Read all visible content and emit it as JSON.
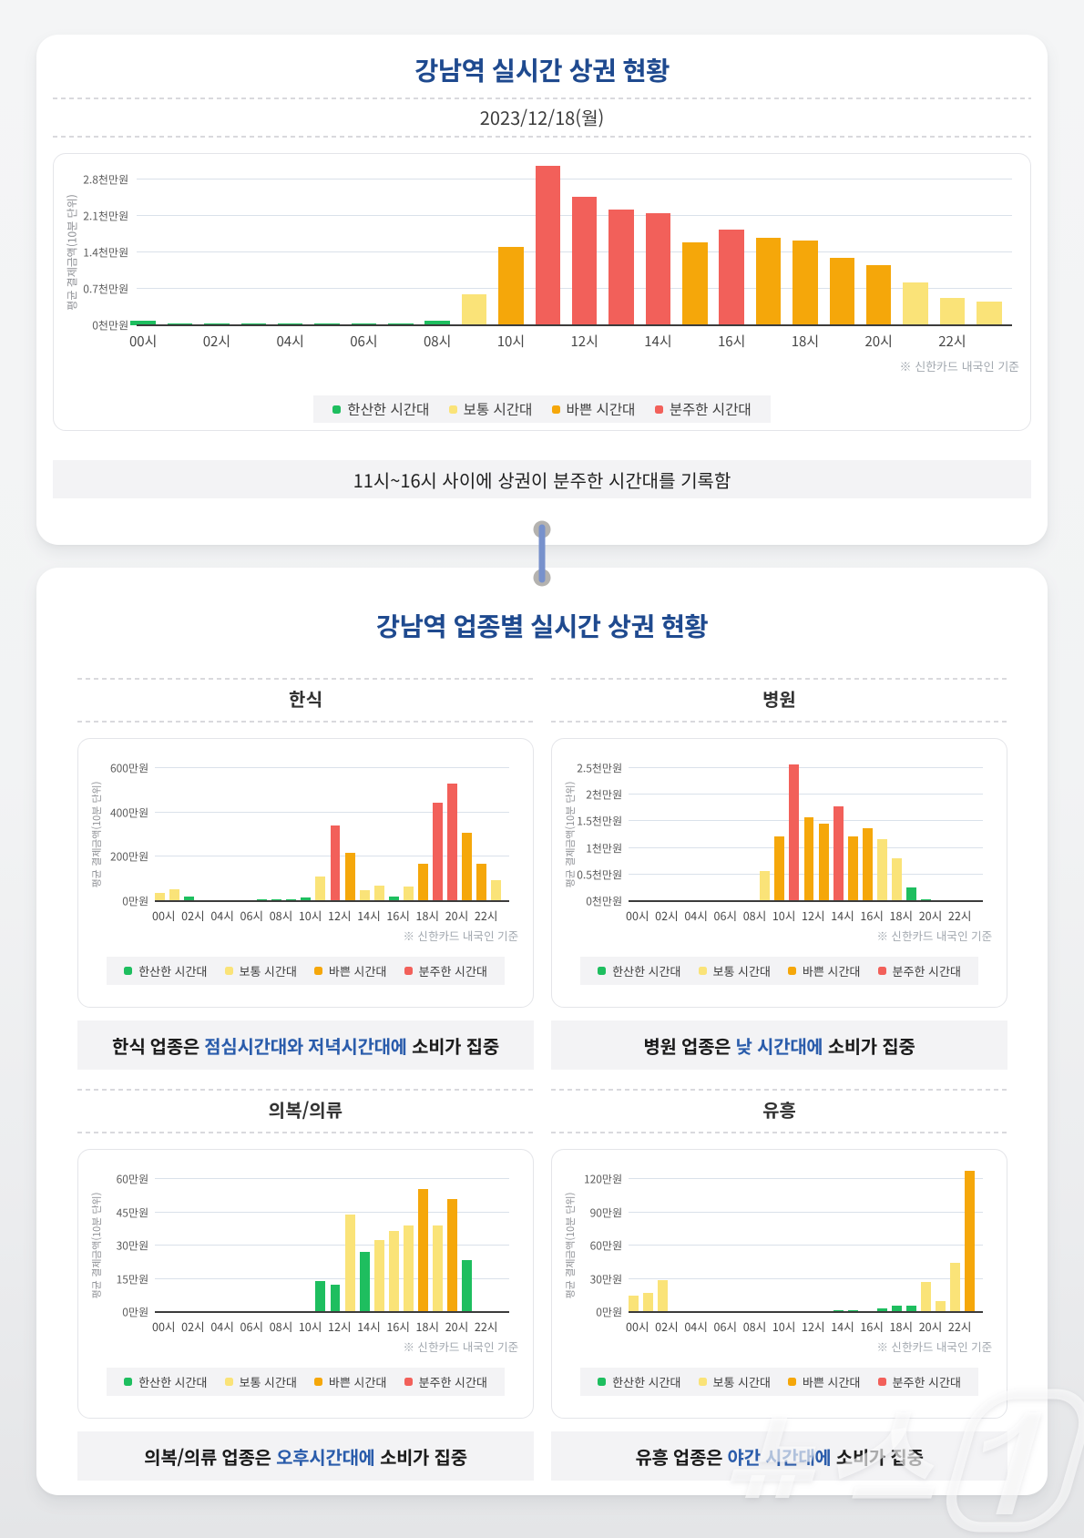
{
  "palette": {
    "quiet": "#1ebe5f",
    "normal": "#fae378",
    "busy": "#f5a70a",
    "hectic": "#f2605a",
    "title_blue": "#1f4a8f",
    "accent_blue": "#2a5cab"
  },
  "legend": {
    "items": [
      {
        "key": "quiet",
        "label": "한산한 시간대"
      },
      {
        "key": "normal",
        "label": "보통 시간대"
      },
      {
        "key": "busy",
        "label": "바쁜 시간대"
      },
      {
        "key": "hectic",
        "label": "분주한 시간대"
      }
    ]
  },
  "note": "※ 신한카드 내국인 기준",
  "axis_unit": "평균 결제금액(10분 단위)",
  "card1": {
    "title": "강남역 실시간 상권 현황",
    "date": "2023/12/18(월)",
    "summary": [
      {
        "t": "11시~16시 사이에 상권이 분주한 시간대를 기록함",
        "a": false
      }
    ]
  },
  "card2": {
    "title": "강남역 업종별 실시간 상권 현황",
    "sections": [
      {
        "title": "한식",
        "chart": 1,
        "summary": [
          {
            "t": "한식 업종은 ",
            "a": false
          },
          {
            "t": "점심시간대와 저녁시간대에",
            "a": true
          },
          {
            "t": " 소비가 집중",
            "a": false
          }
        ]
      },
      {
        "title": "병원",
        "chart": 2,
        "summary": [
          {
            "t": "병원 업종은 ",
            "a": false
          },
          {
            "t": "낮 시간대에",
            "a": true
          },
          {
            "t": " 소비가 집중",
            "a": false
          }
        ]
      },
      {
        "title": "의복/의류",
        "chart": 3,
        "summary": [
          {
            "t": "의복/의류 업종은 ",
            "a": false
          },
          {
            "t": "오후시간대에",
            "a": true
          },
          {
            "t": " 소비가 집중",
            "a": false
          }
        ]
      },
      {
        "title": "유흥",
        "chart": 4,
        "summary": [
          {
            "t": "유흥 업종은 ",
            "a": false
          },
          {
            "t": "야간 시간대에",
            "a": true
          },
          {
            "t": " 소비가 집중",
            "a": false
          }
        ]
      }
    ]
  },
  "watermark": "뉴스1",
  "chart_data": [
    {
      "id": "gangnam-all",
      "type": "bar",
      "title": "강남역 실시간 상권 현황",
      "ylabel": "평균 결제금액(10분 단위)",
      "categories": [
        "00시",
        "01시",
        "02시",
        "03시",
        "04시",
        "05시",
        "06시",
        "07시",
        "08시",
        "09시",
        "10시",
        "11시",
        "12시",
        "13시",
        "14시",
        "15시",
        "16시",
        "17시",
        "18시",
        "19시",
        "20시",
        "21시",
        "22시",
        "23시"
      ],
      "x_ticks_shown": [
        "00시",
        "02시",
        "04시",
        "06시",
        "08시",
        "10시",
        "12시",
        "14시",
        "16시",
        "18시",
        "20시",
        "22시"
      ],
      "yticks": [
        {
          "v": 0,
          "label": "0천만원"
        },
        {
          "v": 0.7,
          "label": "0.7천만원"
        },
        {
          "v": 1.4,
          "label": "1.4천만원"
        },
        {
          "v": 2.1,
          "label": "2.1천만원"
        },
        {
          "v": 2.8,
          "label": "2.8천만원"
        }
      ],
      "ymax": 2.8,
      "unit": "천만원",
      "values": [
        0.09,
        0.04,
        0.04,
        0.03,
        0.04,
        0.04,
        0.04,
        0.04,
        0.09,
        0.6,
        1.5,
        3.06,
        2.47,
        2.22,
        2.15,
        1.6,
        1.84,
        1.68,
        1.62,
        1.29,
        1.16,
        0.83,
        0.52,
        0.45
      ],
      "levels": [
        "quiet",
        "quiet",
        "quiet",
        "quiet",
        "quiet",
        "quiet",
        "quiet",
        "quiet",
        "quiet",
        "normal",
        "busy",
        "hectic",
        "hectic",
        "hectic",
        "hectic",
        "busy",
        "hectic",
        "busy",
        "busy",
        "busy",
        "busy",
        "normal",
        "normal",
        "normal"
      ],
      "legend_position": "bottom",
      "grid": true
    },
    {
      "id": "korean-food",
      "type": "bar",
      "title": "한식",
      "ylabel": "평균 결제금액(10분 단위)",
      "categories": [
        "00시",
        "01시",
        "02시",
        "03시",
        "04시",
        "05시",
        "06시",
        "07시",
        "08시",
        "09시",
        "10시",
        "11시",
        "12시",
        "13시",
        "14시",
        "15시",
        "16시",
        "17시",
        "18시",
        "19시",
        "20시",
        "21시",
        "22시",
        "23시"
      ],
      "x_ticks_shown": [
        "00시",
        "02시",
        "04시",
        "06시",
        "08시",
        "10시",
        "12시",
        "14시",
        "16시",
        "18시",
        "20시",
        "22시"
      ],
      "yticks": [
        {
          "v": 0,
          "label": "0만원"
        },
        {
          "v": 200,
          "label": "200만원"
        },
        {
          "v": 400,
          "label": "400만원"
        },
        {
          "v": 600,
          "label": "600만원"
        }
      ],
      "ymax": 600,
      "unit": "만원",
      "values": [
        35,
        52,
        22,
        0,
        0,
        0,
        0,
        8,
        8,
        8,
        15,
        110,
        340,
        218,
        50,
        68,
        22,
        67,
        170,
        445,
        530,
        310,
        170,
        95
      ],
      "levels": [
        "normal",
        "normal",
        "quiet",
        null,
        null,
        null,
        null,
        "quiet",
        "quiet",
        "quiet",
        "quiet",
        "normal",
        "hectic",
        "busy",
        "normal",
        "normal",
        "quiet",
        "normal",
        "busy",
        "hectic",
        "hectic",
        "busy",
        "busy",
        "normal"
      ],
      "legend_position": "bottom",
      "grid": true
    },
    {
      "id": "hospital",
      "type": "bar",
      "title": "병원",
      "ylabel": "평균 결제금액(10분 단위)",
      "categories": [
        "00시",
        "01시",
        "02시",
        "03시",
        "04시",
        "05시",
        "06시",
        "07시",
        "08시",
        "09시",
        "10시",
        "11시",
        "12시",
        "13시",
        "14시",
        "15시",
        "16시",
        "17시",
        "18시",
        "19시",
        "20시",
        "21시",
        "22시",
        "23시"
      ],
      "x_ticks_shown": [
        "00시",
        "02시",
        "04시",
        "06시",
        "08시",
        "10시",
        "12시",
        "14시",
        "16시",
        "18시",
        "20시",
        "22시"
      ],
      "yticks": [
        {
          "v": 0,
          "label": "0천만원"
        },
        {
          "v": 0.5,
          "label": "0.5천만원"
        },
        {
          "v": 1,
          "label": "1천만원"
        },
        {
          "v": 1.5,
          "label": "1.5천만원"
        },
        {
          "v": 2,
          "label": "2천만원"
        },
        {
          "v": 2.5,
          "label": "2.5천만원"
        }
      ],
      "ymax": 2.5,
      "unit": "천만원",
      "values": [
        0,
        0,
        0,
        0,
        0,
        0,
        0,
        0,
        0,
        0.56,
        1.22,
        2.57,
        1.57,
        1.45,
        1.78,
        1.22,
        1.37,
        1.17,
        0.81,
        0.25,
        0.03,
        0,
        0,
        0
      ],
      "levels": [
        null,
        null,
        null,
        null,
        null,
        null,
        null,
        null,
        null,
        "normal",
        "busy",
        "hectic",
        "busy",
        "busy",
        "hectic",
        "busy",
        "busy",
        "normal",
        "normal",
        "quiet",
        "quiet",
        null,
        null,
        null
      ],
      "legend_position": "bottom",
      "grid": true
    },
    {
      "id": "clothing",
      "type": "bar",
      "title": "의복/의류",
      "ylabel": "평균 결제금액(10분 단위)",
      "categories": [
        "00시",
        "01시",
        "02시",
        "03시",
        "04시",
        "05시",
        "06시",
        "07시",
        "08시",
        "09시",
        "10시",
        "11시",
        "12시",
        "13시",
        "14시",
        "15시",
        "16시",
        "17시",
        "18시",
        "19시",
        "20시",
        "21시",
        "22시",
        "23시"
      ],
      "x_ticks_shown": [
        "00시",
        "02시",
        "04시",
        "06시",
        "08시",
        "10시",
        "12시",
        "14시",
        "16시",
        "18시",
        "20시",
        "22시"
      ],
      "yticks": [
        {
          "v": 0,
          "label": "0만원"
        },
        {
          "v": 15,
          "label": "15만원"
        },
        {
          "v": 30,
          "label": "30만원"
        },
        {
          "v": 45,
          "label": "45만원"
        },
        {
          "v": 60,
          "label": "60만원"
        }
      ],
      "ymax": 60,
      "unit": "만원",
      "values": [
        0,
        0,
        0,
        0,
        0,
        0,
        0,
        0,
        0,
        0,
        0,
        14,
        12.5,
        44,
        27,
        32.5,
        36.5,
        39,
        55.5,
        39,
        51,
        23.5,
        0,
        0
      ],
      "levels": [
        null,
        null,
        null,
        null,
        null,
        null,
        null,
        null,
        null,
        null,
        null,
        "quiet",
        "quiet",
        "normal",
        "quiet",
        "normal",
        "normal",
        "normal",
        "busy",
        "normal",
        "busy",
        "quiet",
        null,
        null
      ],
      "legend_position": "bottom",
      "grid": true
    },
    {
      "id": "nightlife",
      "type": "bar",
      "title": "유흥",
      "ylabel": "평균 결제금액(10분 단위)",
      "categories": [
        "00시",
        "01시",
        "02시",
        "03시",
        "04시",
        "05시",
        "06시",
        "07시",
        "08시",
        "09시",
        "10시",
        "11시",
        "12시",
        "13시",
        "14시",
        "15시",
        "16시",
        "17시",
        "18시",
        "19시",
        "20시",
        "21시",
        "22시",
        "23시"
      ],
      "x_ticks_shown": [
        "00시",
        "02시",
        "04시",
        "06시",
        "08시",
        "10시",
        "12시",
        "14시",
        "16시",
        "18시",
        "20시",
        "22시"
      ],
      "yticks": [
        {
          "v": 0,
          "label": "0만원"
        },
        {
          "v": 30,
          "label": "30만원"
        },
        {
          "v": 60,
          "label": "60만원"
        },
        {
          "v": 90,
          "label": "90만원"
        },
        {
          "v": 120,
          "label": "120만원"
        }
      ],
      "ymax": 120,
      "unit": "만원",
      "values": [
        15,
        17,
        29,
        0,
        0,
        0,
        0,
        0,
        0,
        0,
        0,
        0,
        0,
        0,
        2,
        2,
        0,
        3.5,
        5.5,
        5.5,
        27,
        9.5,
        44,
        127
      ],
      "levels": [
        "normal",
        "normal",
        "normal",
        null,
        null,
        null,
        null,
        null,
        null,
        null,
        null,
        null,
        null,
        null,
        "quiet",
        "quiet",
        null,
        "quiet",
        "quiet",
        "quiet",
        "normal",
        "normal",
        "normal",
        "busy"
      ],
      "legend_position": "bottom",
      "grid": true
    }
  ]
}
